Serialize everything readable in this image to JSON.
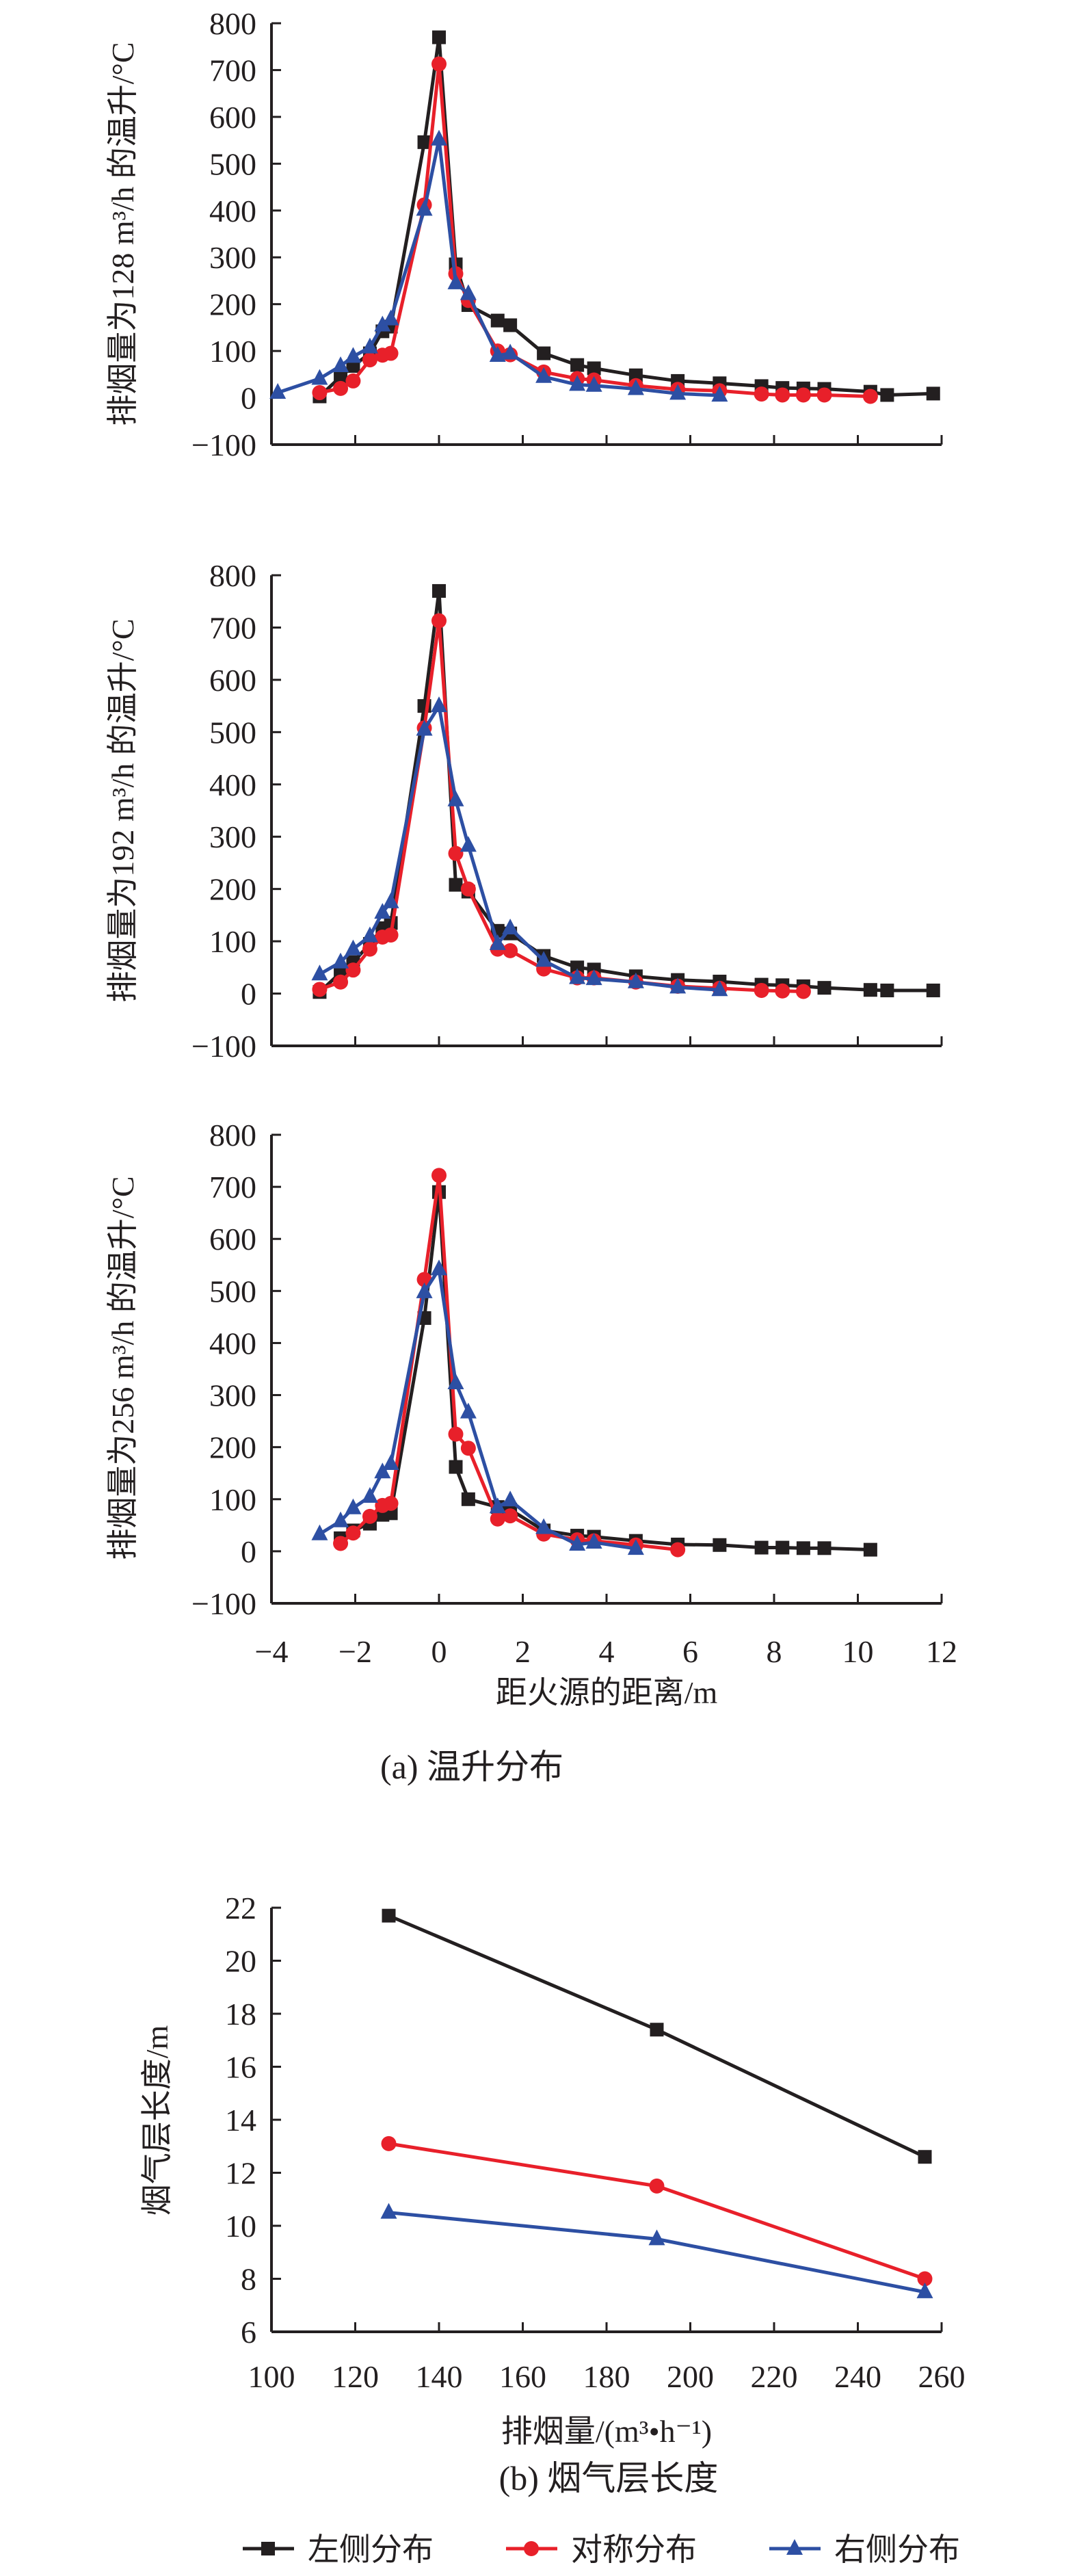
{
  "colors": {
    "left": "#231f20",
    "sym": "#e8202a",
    "right": "#2d4fa3",
    "axis": "#231f20"
  },
  "legend": [
    {
      "key": "left",
      "label": "左侧分布",
      "marker": "square"
    },
    {
      "key": "sym",
      "label": "对称分布",
      "marker": "circle"
    },
    {
      "key": "right",
      "label": "右侧分布",
      "marker": "triangle"
    }
  ],
  "captions": {
    "a": "(a) 温升分布",
    "b": "(b) 烟气层长度"
  },
  "chart_data": [
    {
      "type": "line",
      "ylabel": "排烟量为128 m³/h 的温升/°C",
      "xlabel": "",
      "xlim": [
        -4,
        12
      ],
      "ylim": [
        -100,
        800
      ],
      "yticks": [
        -100,
        0,
        100,
        200,
        300,
        400,
        500,
        600,
        700,
        800
      ],
      "ytick_labels": [
        "−100",
        "0",
        "100",
        "200",
        "300",
        "400",
        "500",
        "600",
        "700",
        "800"
      ],
      "series": [
        {
          "key": "left",
          "name": "左侧分布",
          "x": [
            -2.85,
            -2.35,
            -2.05,
            -1.65,
            -1.35,
            -1.15,
            -0.35,
            0,
            0.4,
            0.7,
            1.4,
            1.7,
            2.5,
            3.3,
            3.7,
            4.7,
            5.7,
            6.7,
            7.7,
            8.2,
            8.7,
            9.2,
            10.3,
            10.7,
            11.8
          ],
          "y": [
            3,
            45,
            68,
            95,
            142,
            152,
            546,
            770,
            285,
            198,
            165,
            155,
            95,
            70,
            63,
            48,
            36,
            31,
            25,
            21,
            20,
            19,
            13,
            6,
            9
          ]
        },
        {
          "key": "sym",
          "name": "对称分布",
          "x": [
            -2.85,
            -2.35,
            -2.05,
            -1.65,
            -1.35,
            -1.15,
            -0.35,
            0,
            0.4,
            0.7,
            1.4,
            1.7,
            2.5,
            3.3,
            3.7,
            4.7,
            5.7,
            6.7,
            7.7,
            8.2,
            8.7,
            9.2,
            10.3
          ],
          "y": [
            11,
            20,
            36,
            81,
            91,
            95,
            412,
            713,
            265,
            208,
            100,
            92,
            55,
            41,
            38,
            26,
            18,
            15,
            8,
            6,
            6,
            6,
            3
          ]
        },
        {
          "key": "right",
          "name": "右侧分布",
          "x": [
            -3.85,
            -2.85,
            -2.35,
            -2.05,
            -1.65,
            -1.35,
            -1.15,
            -0.35,
            0,
            0.4,
            0.7,
            1.4,
            1.7,
            2.5,
            3.3,
            3.7,
            4.7,
            5.7,
            6.7
          ],
          "y": [
            11,
            41,
            68,
            88,
            108,
            155,
            168,
            402,
            552,
            245,
            222,
            90,
            95,
            45,
            28,
            26,
            19,
            9,
            5
          ]
        }
      ]
    },
    {
      "type": "line",
      "ylabel": "排烟量为192 m³/h 的温升/°C",
      "xlabel": "",
      "xlim": [
        -4,
        12
      ],
      "ylim": [
        -100,
        800
      ],
      "yticks": [
        -100,
        0,
        100,
        200,
        300,
        400,
        500,
        600,
        700,
        800
      ],
      "ytick_labels": [
        "−100",
        "0",
        "100",
        "200",
        "300",
        "400",
        "500",
        "600",
        "700",
        "800"
      ],
      "series": [
        {
          "key": "left",
          "name": "左侧分布",
          "x": [
            -2.85,
            -2.35,
            -2.05,
            -1.65,
            -1.35,
            -1.15,
            -0.35,
            0,
            0.4,
            0.7,
            1.4,
            1.7,
            2.5,
            3.3,
            3.7,
            4.7,
            5.7,
            6.7,
            7.7,
            8.2,
            8.7,
            9.2,
            10.3,
            10.7,
            11.8
          ],
          "y": [
            3,
            40,
            60,
            95,
            125,
            135,
            550,
            770,
            208,
            195,
            120,
            115,
            72,
            50,
            46,
            33,
            26,
            23,
            17,
            16,
            14,
            11,
            7,
            6,
            6
          ]
        },
        {
          "key": "sym",
          "name": "对称分布",
          "x": [
            -2.85,
            -2.35,
            -2.05,
            -1.65,
            -1.35,
            -1.15,
            -0.35,
            0,
            0.4,
            0.7,
            1.4,
            1.7,
            2.5,
            3.3,
            3.7,
            4.7,
            5.7,
            6.7,
            7.7,
            8.2,
            8.7
          ],
          "y": [
            8,
            22,
            45,
            85,
            108,
            112,
            508,
            713,
            268,
            200,
            85,
            82,
            47,
            30,
            30,
            22,
            14,
            10,
            6,
            5,
            4
          ]
        },
        {
          "key": "right",
          "name": "右侧分布",
          "x": [
            -2.85,
            -2.35,
            -2.05,
            -1.65,
            -1.35,
            -1.15,
            -0.35,
            0,
            0.4,
            0.7,
            1.4,
            1.7,
            2.5,
            3.3,
            3.7,
            4.7,
            5.7,
            6.7
          ],
          "y": [
            37,
            60,
            85,
            110,
            155,
            175,
            505,
            550,
            370,
            283,
            95,
            125,
            63,
            30,
            28,
            22,
            12,
            7
          ]
        }
      ]
    },
    {
      "type": "line",
      "ylabel": "排烟量为256 m³/h 的温升/°C",
      "xlabel": "距火源的距离/m",
      "xlim": [
        -4,
        12
      ],
      "ylim": [
        -100,
        800
      ],
      "xticks": [
        -4,
        -2,
        0,
        2,
        4,
        6,
        8,
        10,
        12
      ],
      "xtick_labels": [
        "−4",
        "−2",
        "0",
        "2",
        "4",
        "6",
        "8",
        "10",
        "12"
      ],
      "yticks": [
        -100,
        0,
        100,
        200,
        300,
        400,
        500,
        600,
        700,
        800
      ],
      "ytick_labels": [
        "−100",
        "0",
        "100",
        "200",
        "300",
        "400",
        "500",
        "600",
        "700",
        "800"
      ],
      "series": [
        {
          "key": "left",
          "name": "左侧分布",
          "x": [
            -2.35,
            -2.05,
            -1.65,
            -1.35,
            -1.15,
            -0.35,
            0,
            0.4,
            0.7,
            1.4,
            1.7,
            2.5,
            3.3,
            3.7,
            4.7,
            5.7,
            6.7,
            7.7,
            8.2,
            8.7,
            9.2,
            10.3
          ],
          "y": [
            25,
            40,
            53,
            70,
            73,
            448,
            690,
            162,
            100,
            85,
            80,
            40,
            30,
            28,
            20,
            13,
            12,
            7,
            7,
            6,
            6,
            3
          ]
        },
        {
          "key": "sym",
          "name": "对称分布",
          "x": [
            -2.35,
            -2.05,
            -1.65,
            -1.35,
            -1.15,
            -0.35,
            0,
            0.4,
            0.7,
            1.4,
            1.7,
            2.5,
            3.3,
            3.7,
            4.7,
            5.7
          ],
          "y": [
            15,
            35,
            67,
            88,
            92,
            522,
            722,
            225,
            198,
            62,
            68,
            33,
            22,
            20,
            12,
            3
          ]
        },
        {
          "key": "right",
          "name": "右侧分布",
          "x": [
            -2.85,
            -2.35,
            -2.05,
            -1.65,
            -1.35,
            -1.15,
            -0.35,
            0,
            0.4,
            0.7,
            1.4,
            1.7,
            2.5,
            3.3,
            3.7,
            4.7
          ],
          "y": [
            33,
            58,
            83,
            105,
            152,
            168,
            498,
            542,
            323,
            267,
            85,
            98,
            45,
            13,
            17,
            5
          ]
        }
      ]
    },
    {
      "type": "line",
      "ylabel": "烟气层长度/m",
      "xlabel": "排烟量/(m³•h⁻¹)",
      "xlim": [
        100,
        260
      ],
      "ylim": [
        6,
        22
      ],
      "xticks": [
        100,
        120,
        140,
        160,
        180,
        200,
        220,
        240,
        260
      ],
      "xtick_labels": [
        "100",
        "120",
        "140",
        "160",
        "180",
        "200",
        "220",
        "240",
        "260"
      ],
      "yticks": [
        6,
        8,
        10,
        12,
        14,
        16,
        18,
        20,
        22
      ],
      "ytick_labels": [
        "6",
        "8",
        "10",
        "12",
        "14",
        "16",
        "18",
        "20",
        "22"
      ],
      "series": [
        {
          "key": "left",
          "name": "左侧分布",
          "x": [
            128,
            192,
            256
          ],
          "y": [
            21.7,
            17.4,
            12.6
          ]
        },
        {
          "key": "sym",
          "name": "对称分布",
          "x": [
            128,
            192,
            256
          ],
          "y": [
            13.1,
            11.5,
            8.0
          ]
        },
        {
          "key": "right",
          "name": "右侧分布",
          "x": [
            128,
            192,
            256
          ],
          "y": [
            10.5,
            9.5,
            7.5
          ]
        }
      ]
    }
  ]
}
